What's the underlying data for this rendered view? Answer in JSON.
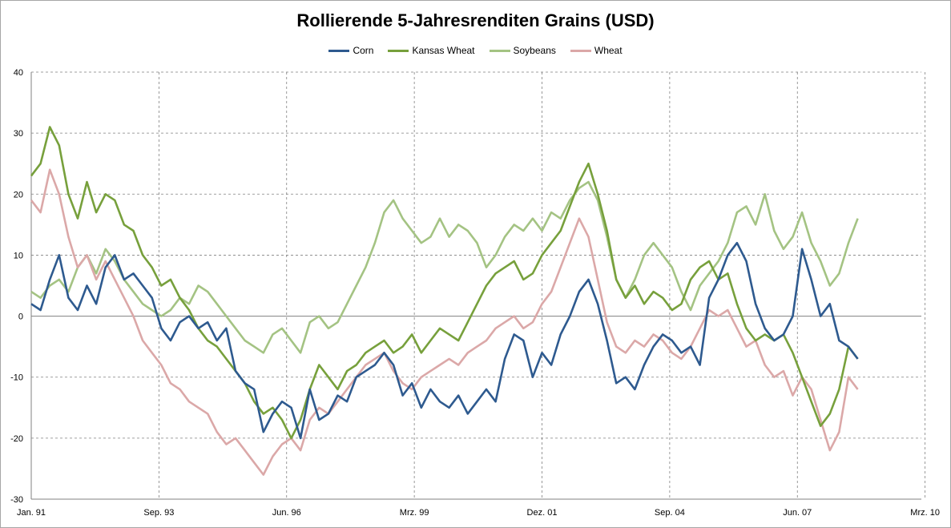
{
  "chart_data": {
    "type": "line",
    "title": "Rollierende 5-Jahresrenditen Grains (USD)",
    "xlabel": "",
    "ylabel": "",
    "x_range": [
      "1991-01",
      "2010-03"
    ],
    "ylim": [
      -30,
      40
    ],
    "y_ticks": [
      40,
      30,
      20,
      10,
      0,
      -10,
      -20,
      -30
    ],
    "x_ticks": [
      "Jan. 91",
      "Sep. 93",
      "Jun. 96",
      "Mrz. 99",
      "Dez. 01",
      "Sep. 04",
      "Jun. 07",
      "Mrz. 10"
    ],
    "grid": "dashed",
    "legend": "top-center",
    "series": [
      {
        "name": "Corn",
        "color": "#2e5a8f",
        "x": [
          1991.0,
          1991.2,
          1991.4,
          1991.6,
          1991.8,
          1992.0,
          1992.2,
          1992.4,
          1992.6,
          1992.8,
          1993.0,
          1993.2,
          1993.4,
          1993.6,
          1993.8,
          1994.0,
          1994.2,
          1994.4,
          1994.6,
          1994.8,
          1995.0,
          1995.2,
          1995.4,
          1995.6,
          1995.8,
          1996.0,
          1996.2,
          1996.4,
          1996.6,
          1996.8,
          1997.0,
          1997.2,
          1997.4,
          1997.6,
          1997.8,
          1998.0,
          1998.2,
          1998.4,
          1998.6,
          1998.8,
          1999.0,
          1999.2,
          1999.4,
          1999.6,
          1999.8,
          2000.0,
          2000.2,
          2000.4,
          2000.6,
          2000.8,
          2001.0,
          2001.2,
          2001.4,
          2001.6,
          2001.8,
          2002.0,
          2002.2,
          2002.4,
          2002.6,
          2002.8,
          2003.0,
          2003.2,
          2003.4,
          2003.6,
          2003.8,
          2004.0,
          2004.2,
          2004.4,
          2004.6,
          2004.8,
          2005.0,
          2005.2,
          2005.4,
          2005.6,
          2005.8,
          2006.0,
          2006.2,
          2006.4,
          2006.6,
          2006.8,
          2007.0,
          2007.2,
          2007.4,
          2007.6,
          2007.8,
          2008.0,
          2008.2,
          2008.4,
          2008.6,
          2008.8
        ],
        "y": [
          2,
          1,
          6,
          10,
          3,
          1,
          5,
          2,
          8,
          10,
          6,
          7,
          5,
          3,
          -2,
          -4,
          -1,
          0,
          -2,
          -1,
          -4,
          -2,
          -9,
          -11,
          -12,
          -19,
          -16,
          -14,
          -15,
          -20,
          -12,
          -17,
          -16,
          -13,
          -14,
          -10,
          -9,
          -8,
          -6,
          -8,
          -13,
          -11,
          -15,
          -12,
          -14,
          -15,
          -13,
          -16,
          -14,
          -12,
          -14,
          -7,
          -3,
          -4,
          -10,
          -6,
          -8,
          -3,
          0,
          4,
          6,
          2,
          -4,
          -11,
          -10,
          -12,
          -8,
          -5,
          -3,
          -4,
          -6,
          -5,
          -8,
          3,
          6,
          10,
          12,
          9,
          2,
          -2,
          -4,
          -3,
          0,
          11,
          6,
          0,
          2,
          -4,
          -5,
          -7
        ]
      },
      {
        "name": "Kansas Wheat",
        "color": "#77a03c",
        "x": [
          1991.0,
          1991.2,
          1991.4,
          1991.6,
          1991.8,
          1992.0,
          1992.2,
          1992.4,
          1992.6,
          1992.8,
          1993.0,
          1993.2,
          1993.4,
          1993.6,
          1993.8,
          1994.0,
          1994.2,
          1994.4,
          1994.6,
          1994.8,
          1995.0,
          1995.2,
          1995.4,
          1995.6,
          1995.8,
          1996.0,
          1996.2,
          1996.4,
          1996.6,
          1996.8,
          1997.0,
          1997.2,
          1997.4,
          1997.6,
          1997.8,
          1998.0,
          1998.2,
          1998.4,
          1998.6,
          1998.8,
          1999.0,
          1999.2,
          1999.4,
          1999.6,
          1999.8,
          2000.0,
          2000.2,
          2000.4,
          2000.6,
          2000.8,
          2001.0,
          2001.2,
          2001.4,
          2001.6,
          2001.8,
          2002.0,
          2002.2,
          2002.4,
          2002.6,
          2002.8,
          2003.0,
          2003.2,
          2003.4,
          2003.6,
          2003.8,
          2004.0,
          2004.2,
          2004.4,
          2004.6,
          2004.8,
          2005.0,
          2005.2,
          2005.4,
          2005.6,
          2005.8,
          2006.0,
          2006.2,
          2006.4,
          2006.6,
          2006.8,
          2007.0,
          2007.2,
          2007.4,
          2007.6,
          2007.8,
          2008.0,
          2008.2,
          2008.4,
          2008.6,
          2008.8
        ],
        "y": [
          23,
          25,
          31,
          28,
          20,
          16,
          22,
          17,
          20,
          19,
          15,
          14,
          10,
          8,
          5,
          6,
          3,
          1,
          -2,
          -4,
          -5,
          -7,
          -9,
          -11,
          -14,
          -16,
          -15,
          -17,
          -20,
          -17,
          -12,
          -8,
          -10,
          -12,
          -9,
          -8,
          -6,
          -5,
          -4,
          -6,
          -5,
          -3,
          -6,
          -4,
          -2,
          -3,
          -4,
          -1,
          2,
          5,
          7,
          8,
          9,
          6,
          7,
          10,
          12,
          14,
          18,
          22,
          25,
          20,
          14,
          6,
          3,
          5,
          2,
          4,
          3,
          1,
          2,
          6,
          8,
          9,
          6,
          7,
          2,
          -2,
          -4,
          -3,
          -4,
          -3,
          -6,
          -10,
          -14,
          -18,
          -16,
          -12,
          -5,
          -7
        ]
      },
      {
        "name": "Soybeans",
        "color": "#a4c383",
        "x": [
          1991.0,
          1991.2,
          1991.4,
          1991.6,
          1991.8,
          1992.0,
          1992.2,
          1992.4,
          1992.6,
          1992.8,
          1993.0,
          1993.2,
          1993.4,
          1993.6,
          1993.8,
          1994.0,
          1994.2,
          1994.4,
          1994.6,
          1994.8,
          1995.0,
          1995.2,
          1995.4,
          1995.6,
          1995.8,
          1996.0,
          1996.2,
          1996.4,
          1996.6,
          1996.8,
          1997.0,
          1997.2,
          1997.4,
          1997.6,
          1997.8,
          1998.0,
          1998.2,
          1998.4,
          1998.6,
          1998.8,
          1999.0,
          1999.2,
          1999.4,
          1999.6,
          1999.8,
          2000.0,
          2000.2,
          2000.4,
          2000.6,
          2000.8,
          2001.0,
          2001.2,
          2001.4,
          2001.6,
          2001.8,
          2002.0,
          2002.2,
          2002.4,
          2002.6,
          2002.8,
          2003.0,
          2003.2,
          2003.4,
          2003.6,
          2003.8,
          2004.0,
          2004.2,
          2004.4,
          2004.6,
          2004.8,
          2005.0,
          2005.2,
          2005.4,
          2005.6,
          2005.8,
          2006.0,
          2006.2,
          2006.4,
          2006.6,
          2006.8,
          2007.0,
          2007.2,
          2007.4,
          2007.6,
          2007.8,
          2008.0,
          2008.2,
          2008.4,
          2008.6,
          2008.8
        ],
        "y": [
          4,
          3,
          5,
          6,
          4,
          8,
          10,
          7,
          11,
          9,
          6,
          4,
          2,
          1,
          0,
          1,
          3,
          2,
          5,
          4,
          2,
          0,
          -2,
          -4,
          -5,
          -6,
          -3,
          -2,
          -4,
          -6,
          -1,
          0,
          -2,
          -1,
          2,
          5,
          8,
          12,
          17,
          19,
          16,
          14,
          12,
          13,
          16,
          13,
          15,
          14,
          12,
          8,
          10,
          13,
          15,
          14,
          16,
          14,
          17,
          16,
          19,
          21,
          22,
          19,
          13,
          6,
          3,
          6,
          10,
          12,
          10,
          8,
          4,
          1,
          5,
          7,
          9,
          12,
          17,
          18,
          15,
          20,
          14,
          11,
          13,
          17,
          12,
          9,
          5,
          7,
          12,
          16
        ]
      },
      {
        "name": "Wheat",
        "color": "#dba8a8",
        "x": [
          1991.0,
          1991.2,
          1991.4,
          1991.6,
          1991.8,
          1992.0,
          1992.2,
          1992.4,
          1992.6,
          1992.8,
          1993.0,
          1993.2,
          1993.4,
          1993.6,
          1993.8,
          1994.0,
          1994.2,
          1994.4,
          1994.6,
          1994.8,
          1995.0,
          1995.2,
          1995.4,
          1995.6,
          1995.8,
          1996.0,
          1996.2,
          1996.4,
          1996.6,
          1996.8,
          1997.0,
          1997.2,
          1997.4,
          1997.6,
          1997.8,
          1998.0,
          1998.2,
          1998.4,
          1998.6,
          1998.8,
          1999.0,
          1999.2,
          1999.4,
          1999.6,
          1999.8,
          2000.0,
          2000.2,
          2000.4,
          2000.6,
          2000.8,
          2001.0,
          2001.2,
          2001.4,
          2001.6,
          2001.8,
          2002.0,
          2002.2,
          2002.4,
          2002.6,
          2002.8,
          2003.0,
          2003.2,
          2003.4,
          2003.6,
          2003.8,
          2004.0,
          2004.2,
          2004.4,
          2004.6,
          2004.8,
          2005.0,
          2005.2,
          2005.4,
          2005.6,
          2005.8,
          2006.0,
          2006.2,
          2006.4,
          2006.6,
          2006.8,
          2007.0,
          2007.2,
          2007.4,
          2007.6,
          2007.8,
          2008.0,
          2008.2,
          2008.4,
          2008.6,
          2008.8
        ],
        "y": [
          19,
          17,
          24,
          20,
          13,
          8,
          10,
          6,
          9,
          6,
          3,
          0,
          -4,
          -6,
          -8,
          -11,
          -12,
          -14,
          -15,
          -16,
          -19,
          -21,
          -20,
          -22,
          -24,
          -26,
          -23,
          -21,
          -20,
          -22,
          -17,
          -15,
          -16,
          -14,
          -12,
          -10,
          -8,
          -7,
          -6,
          -9,
          -11,
          -12,
          -10,
          -9,
          -8,
          -7,
          -8,
          -6,
          -5,
          -4,
          -2,
          -1,
          0,
          -2,
          -1,
          2,
          4,
          8,
          12,
          16,
          13,
          6,
          -1,
          -5,
          -6,
          -4,
          -5,
          -3,
          -4,
          -6,
          -7,
          -5,
          -2,
          1,
          0,
          1,
          -2,
          -5,
          -4,
          -8,
          -10,
          -9,
          -13,
          -10,
          -12,
          -17,
          -22,
          -19,
          -10,
          -12
        ]
      }
    ]
  }
}
